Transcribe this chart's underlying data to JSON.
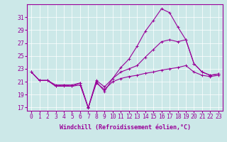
{
  "xlabel": "Windchill (Refroidissement éolien,°C)",
  "bg_color": "#cce8e8",
  "line_color": "#990099",
  "grid_color": "#ffffff",
  "x": [
    0,
    1,
    2,
    3,
    4,
    5,
    6,
    7,
    8,
    9,
    10,
    11,
    12,
    13,
    14,
    15,
    16,
    17,
    18,
    19,
    20,
    21,
    22,
    23
  ],
  "curve1": [
    22.5,
    21.2,
    21.2,
    20.3,
    20.5,
    20.3,
    20.8,
    16.9,
    21.0,
    19.5,
    21.5,
    23.2,
    24.5,
    26.5,
    28.8,
    30.5,
    32.3,
    31.7,
    29.5,
    27.5,
    23.8,
    22.5,
    22.0,
    22.2
  ],
  "curve2": [
    22.5,
    21.2,
    21.2,
    20.5,
    20.5,
    20.5,
    20.8,
    17.0,
    21.2,
    20.2,
    21.5,
    22.5,
    23.0,
    23.5,
    24.8,
    26.0,
    27.2,
    27.5,
    27.2,
    27.5,
    23.8,
    22.5,
    22.0,
    22.2
  ],
  "curve3": [
    22.5,
    21.2,
    21.2,
    20.3,
    20.3,
    20.3,
    20.5,
    17.0,
    20.8,
    19.8,
    21.0,
    21.5,
    21.8,
    22.0,
    22.3,
    22.5,
    22.8,
    23.0,
    23.2,
    23.5,
    22.5,
    22.0,
    21.8,
    22.0
  ],
  "ylim": [
    16.5,
    33.0
  ],
  "yticks": [
    17,
    19,
    21,
    23,
    25,
    27,
    29,
    31
  ],
  "xticks": [
    0,
    1,
    2,
    3,
    4,
    5,
    6,
    7,
    8,
    9,
    10,
    11,
    12,
    13,
    14,
    15,
    16,
    17,
    18,
    19,
    20,
    21,
    22,
    23
  ],
  "font_size": 5.8,
  "lw": 0.8,
  "ms": 3.0,
  "mew": 0.7
}
